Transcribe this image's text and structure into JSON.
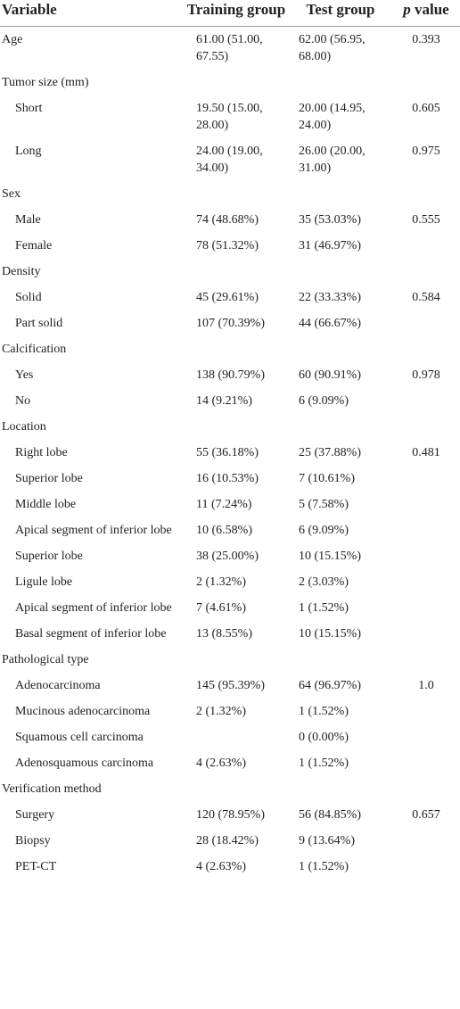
{
  "table": {
    "header": {
      "variable": "Variable",
      "training": "Training group",
      "test": "Test group",
      "p": {
        "symbol": "p",
        "text": "value"
      }
    },
    "groups": [
      {
        "label": "Age",
        "training": "61.00 (51.00, 67.55)",
        "test": "62.00 (56.95, 68.00)",
        "p": "0.393"
      },
      {
        "label": "Tumor size (mm)",
        "rows": [
          {
            "label": "Short",
            "training": "19.50 (15.00, 28.00)",
            "test": "20.00 (14.95, 24.00)",
            "p": "0.605"
          },
          {
            "label": "Long",
            "training": "24.00 (19.00, 34.00)",
            "test": "26.00 (20.00, 31.00)",
            "p": "0.975"
          }
        ]
      },
      {
        "label": "Sex",
        "rows": [
          {
            "label": "Male",
            "training": "74 (48.68%)",
            "test": "35 (53.03%)",
            "p": "0.555"
          },
          {
            "label": "Female",
            "training": "78 (51.32%)",
            "test": "31 (46.97%)"
          }
        ]
      },
      {
        "label": "Density",
        "rows": [
          {
            "label": "Solid",
            "training": "45 (29.61%)",
            "test": "22 (33.33%)",
            "p": "0.584"
          },
          {
            "label": "Part solid",
            "training": "107 (70.39%)",
            "test": "44 (66.67%)"
          }
        ]
      },
      {
        "label": "Calcification",
        "rows": [
          {
            "label": "Yes",
            "training": "138 (90.79%)",
            "test": "60 (90.91%)",
            "p": "0.978"
          },
          {
            "label": "No",
            "training": "14 (9.21%)",
            "test": "6 (9.09%)"
          }
        ]
      },
      {
        "label": "Location",
        "rows": [
          {
            "label": "Right lobe",
            "training": "55 (36.18%)",
            "test": "25 (37.88%)",
            "p": "0.481"
          },
          {
            "label": "Superior lobe",
            "training": "16 (10.53%)",
            "test": "7 (10.61%)"
          },
          {
            "label": "Middle lobe",
            "training": "11 (7.24%)",
            "test": "5 (7.58%)"
          },
          {
            "label": "Apical segment of inferior lobe",
            "training": "10 (6.58%)",
            "test": "6 (9.09%)"
          },
          {
            "label": "Superior lobe",
            "training": "38 (25.00%)",
            "test": "10 (15.15%)"
          },
          {
            "label": "Ligule lobe",
            "training": "2 (1.32%)",
            "test": "2 (3.03%)"
          },
          {
            "label": "Apical segment of inferior lobe",
            "training": "7 (4.61%)",
            "test": "1 (1.52%)"
          },
          {
            "label": "Basal segment of inferior lobe",
            "training": "13 (8.55%)",
            "test": "10 (15.15%)"
          }
        ]
      },
      {
        "label": "Pathological type",
        "rows": [
          {
            "label": "Adenocarcinoma",
            "training": "145 (95.39%)",
            "test": "64 (96.97%)",
            "p": "1.0"
          },
          {
            "label": "Mucinous adenocarcinoma",
            "training": "2 (1.32%)",
            "test": "1 (1.52%)"
          },
          {
            "label": "Squamous cell carcinoma",
            "test": "0 (0.00%)"
          },
          {
            "label": "Adenosquamous carcinoma",
            "training": "4 (2.63%)",
            "test": "1 (1.52%)"
          }
        ]
      },
      {
        "label": "Verification method",
        "rows": [
          {
            "label": "Surgery",
            "training": "120 (78.95%)",
            "test": "56 (84.85%)",
            "p": "0.657"
          },
          {
            "label": "Biopsy",
            "training": "28 (18.42%)",
            "test": "9 (13.64%)"
          },
          {
            "label": "PET-CT",
            "training": "4 (2.63%)",
            "test": "1 (1.52%)"
          }
        ]
      }
    ]
  }
}
